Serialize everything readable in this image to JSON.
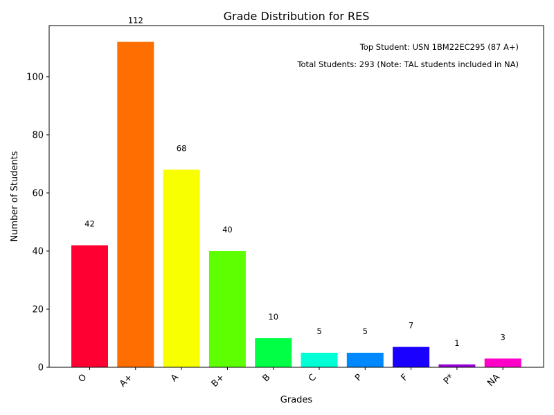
{
  "chart_data": {
    "type": "bar",
    "title": "Grade Distribution for RES",
    "xlabel": "Grades",
    "ylabel": "Number of Students",
    "categories": [
      "O",
      "A+",
      "A",
      "B+",
      "B",
      "C",
      "P",
      "F",
      "P*",
      "NA"
    ],
    "values": [
      42,
      112,
      68,
      40,
      10,
      5,
      5,
      7,
      1,
      3
    ],
    "bar_colors": [
      "#ff0033",
      "#ff6e00",
      "#f7ff00",
      "#5eff00",
      "#00ff45",
      "#00ffd5",
      "#0088ff",
      "#1a00ff",
      "#9500d9",
      "#ff00c8"
    ],
    "ylim": [
      0,
      117.6
    ],
    "yticks": [
      0,
      20,
      40,
      60,
      80,
      100
    ],
    "grid": false,
    "annotations": [
      "Top Student: USN 1BM22EC295 (87 A+)",
      "Total Students: 293 (Note: TAL students included in NA)"
    ]
  }
}
